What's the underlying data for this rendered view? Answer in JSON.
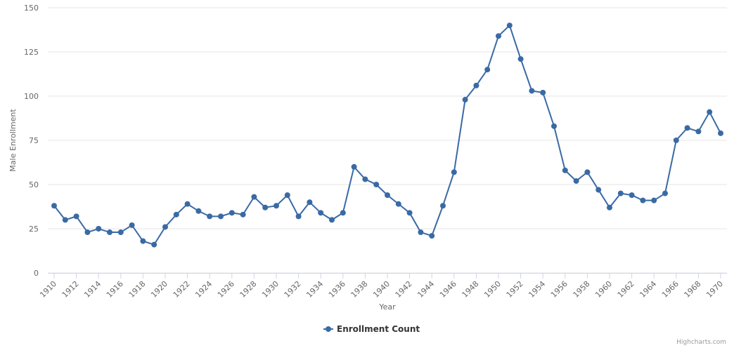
{
  "chart_data": {
    "type": "line",
    "x_label": "Year",
    "y_label": "Male Enrollment",
    "x": [
      1910,
      1911,
      1912,
      1913,
      1914,
      1915,
      1916,
      1917,
      1918,
      1919,
      1920,
      1921,
      1922,
      1923,
      1924,
      1925,
      1926,
      1927,
      1928,
      1929,
      1930,
      1931,
      1932,
      1933,
      1934,
      1935,
      1936,
      1937,
      1938,
      1939,
      1940,
      1941,
      1942,
      1943,
      1944,
      1945,
      1946,
      1947,
      1948,
      1949,
      1950,
      1951,
      1952,
      1953,
      1954,
      1955,
      1956,
      1957,
      1958,
      1959,
      1960,
      1961,
      1962,
      1963,
      1964,
      1965,
      1966,
      1967,
      1968,
      1969,
      1970
    ],
    "series": [
      {
        "name": "Enrollment Count",
        "color": "#3a6aa5",
        "values": [
          38,
          30,
          32,
          23,
          25,
          23,
          23,
          27,
          18,
          16,
          26,
          33,
          39,
          35,
          32,
          32,
          34,
          33,
          43,
          37,
          38,
          44,
          32,
          40,
          34,
          30,
          34,
          60,
          53,
          50,
          44,
          39,
          34,
          23,
          21,
          38,
          57,
          98,
          106,
          115,
          134,
          140,
          121,
          103,
          102,
          83,
          58,
          52,
          57,
          47,
          37,
          45,
          44,
          41,
          41,
          45,
          75,
          82,
          80,
          91,
          79
        ]
      }
    ],
    "xlim": [
      1910,
      1970
    ],
    "xticks": [
      1910,
      1912,
      1914,
      1916,
      1918,
      1920,
      1922,
      1924,
      1926,
      1928,
      1930,
      1932,
      1934,
      1936,
      1938,
      1940,
      1942,
      1944,
      1946,
      1948,
      1950,
      1952,
      1954,
      1956,
      1958,
      1960,
      1962,
      1964,
      1966,
      1968,
      1970
    ],
    "ylim": [
      0,
      150
    ],
    "yticks": [
      0,
      25,
      50,
      75,
      100,
      125,
      150
    ],
    "grid": true,
    "legend": "bottom",
    "credits": "Highcharts.com"
  }
}
